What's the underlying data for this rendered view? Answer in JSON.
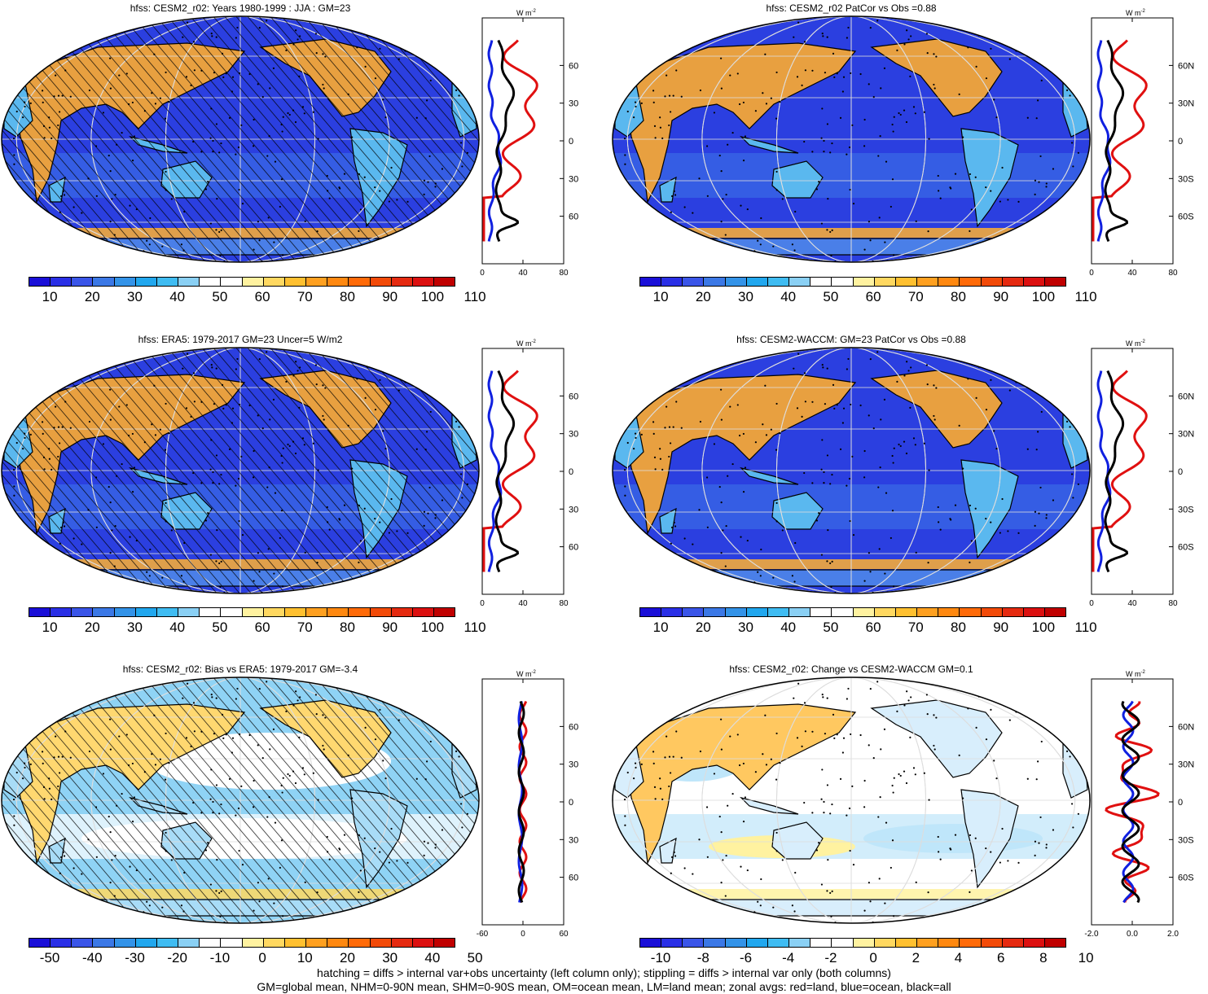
{
  "panels": [
    {
      "id": "p1",
      "title": "hfss: CESM2_r02: Years 1980-1999 : JJA : GM=23",
      "scale": "abs",
      "hatch": true,
      "stipple": true,
      "zonal": {
        "xticks": [
          "0",
          "40",
          "80"
        ],
        "ytick_labels": [
          "60N",
          "30N",
          "0",
          "30S",
          "60S"
        ],
        "unit": "W m",
        "unit_exp": "-2"
      }
    },
    {
      "id": "p2",
      "title": "hfss: CESM2_r02 PatCor vs Obs =0.88",
      "scale": "abs",
      "hatch": false,
      "stipple": true,
      "zonal": {
        "xticks": [
          "0",
          "40",
          "80"
        ],
        "ytick_labels": [
          "60N",
          "30N",
          "0",
          "30S",
          "60S"
        ],
        "unit": "W m",
        "unit_exp": "-2"
      }
    },
    {
      "id": "p3",
      "title": "hfss: ERA5: 1979-2017 GM=23 Uncer=5 W/m2",
      "scale": "abs",
      "hatch": true,
      "stipple": true,
      "zonal": {
        "xticks": [
          "0",
          "40",
          "80"
        ],
        "ytick_labels": [
          "60N",
          "30N",
          "0",
          "30S",
          "60S"
        ],
        "unit": "W m",
        "unit_exp": "-2"
      }
    },
    {
      "id": "p4",
      "title": "hfss: CESM2-WACCM: GM=23 PatCor vs Obs =0.88",
      "scale": "abs",
      "hatch": false,
      "stipple": true,
      "zonal": {
        "xticks": [
          "0",
          "40",
          "80"
        ],
        "ytick_labels": [
          "60N",
          "30N",
          "0",
          "30S",
          "60S"
        ],
        "unit": "W m",
        "unit_exp": "-2"
      }
    },
    {
      "id": "p5",
      "title": "hfss: CESM2_r02: Bias vs ERA5: 1979-2017 GM=-3.4",
      "scale": "diff",
      "hatch": true,
      "stipple": true,
      "zonal": {
        "xticks": [
          "-60",
          "0",
          "60"
        ],
        "ytick_labels": [
          "60N",
          "30N",
          "0",
          "30S",
          "60S"
        ],
        "unit": "W m",
        "unit_exp": "-2"
      }
    },
    {
      "id": "p6",
      "title": "hfss: CESM2_r02: Change vs CESM2-WACCM GM=0.1",
      "scale": "diff",
      "hatch": false,
      "stipple": true,
      "zonal": {
        "xticks": [
          "-2.0",
          "0.0",
          "2.0"
        ],
        "ytick_labels": [
          "60N",
          "30N",
          "0",
          "30S",
          "60S"
        ],
        "unit": "W m",
        "unit_exp": "-2"
      }
    }
  ],
  "colorbars": {
    "abs": {
      "labels": [
        "10",
        "20",
        "30",
        "40",
        "50",
        "60",
        "70",
        "80",
        "90",
        "100",
        "110"
      ],
      "colors": [
        "#1a0fd8",
        "#2a2fe6",
        "#3a55e8",
        "#3b78e6",
        "#3393e8",
        "#21a7ee",
        "#3fbcf2",
        "#8ad0f4",
        "#ffffff",
        "#ffffff",
        "#fff2a0",
        "#ffd860",
        "#ffc030",
        "#ffa020",
        "#ff8810",
        "#ff6a08",
        "#f24a08",
        "#e52a10",
        "#dc1010",
        "#c00000"
      ]
    },
    "diff_left": {
      "labels": [
        "-50",
        "-40",
        "-30",
        "-20",
        "-10",
        "0",
        "10",
        "20",
        "30",
        "40",
        "50"
      ],
      "colors": [
        "#1a0fd8",
        "#2a2fe6",
        "#3a55e8",
        "#3b78e6",
        "#3393e8",
        "#21a7ee",
        "#3fbcf2",
        "#8ad0f4",
        "#ffffff",
        "#ffffff",
        "#fff2a0",
        "#ffd860",
        "#ffc030",
        "#ffa020",
        "#ff8810",
        "#ff6a08",
        "#f24a08",
        "#e52a10",
        "#dc1010",
        "#c00000"
      ]
    },
    "diff_right": {
      "labels": [
        "-10",
        "-8",
        "-6",
        "-4",
        "-2",
        "0",
        "2",
        "4",
        "6",
        "8",
        "10"
      ],
      "colors": [
        "#1a0fd8",
        "#2a2fe6",
        "#3a55e8",
        "#3b78e6",
        "#3393e8",
        "#21a7ee",
        "#3fbcf2",
        "#8ad0f4",
        "#ffffff",
        "#ffffff",
        "#fff2a0",
        "#ffd860",
        "#ffc030",
        "#ffa020",
        "#ff8810",
        "#ff6a08",
        "#f24a08",
        "#e52a10",
        "#dc1010",
        "#c00000"
      ]
    }
  },
  "footer": {
    "line1": "hatching = diffs > internal var+obs uncertainty (left column only); stippling = diffs > internal var only (both columns)",
    "line2": "GM=global mean, NHM=0-90N mean, SHM=0-90S mean, OM=ocean mean, LM=land mean; zonal avgs: red=land, blue=ocean, black=all"
  }
}
